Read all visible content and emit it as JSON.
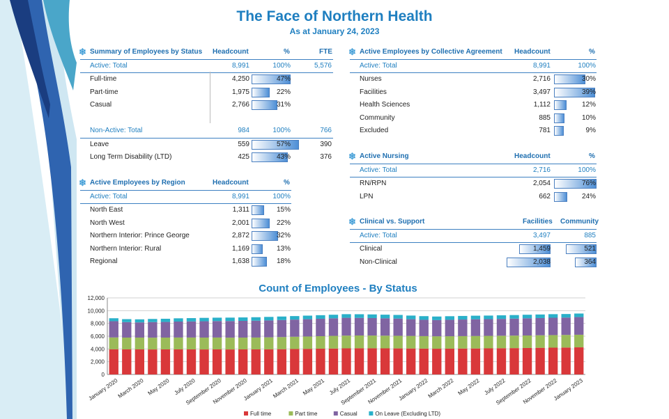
{
  "header": {
    "title": "The Face of Northern Health",
    "subtitle": "As at January 24, 2023"
  },
  "status": {
    "title": "Summary of Employees by Status",
    "cols": [
      "Headcount",
      "%",
      "FTE"
    ],
    "rows": [
      {
        "label": "Active: Total",
        "head": "8,991",
        "pct": "100%",
        "fte": "5,576",
        "type": "total"
      },
      {
        "label": "Full-time",
        "head": "4,250",
        "pct": "47%",
        "p": 47
      },
      {
        "label": "Part-time",
        "head": "1,975",
        "pct": "22%",
        "p": 22
      },
      {
        "label": "Casual",
        "head": "2,766",
        "pct": "31%",
        "p": 31
      },
      {
        "label": "",
        "type": "blank"
      },
      {
        "label": "Non-Active: Total",
        "head": "984",
        "pct": "100%",
        "fte": "766",
        "type": "total"
      },
      {
        "label": "Leave",
        "head": "559",
        "pct": "57%",
        "fte": "390",
        "p": 57
      },
      {
        "label": "Long Term Disability (LTD)",
        "head": "425",
        "pct": "43%",
        "fte": "376",
        "p": 43
      }
    ]
  },
  "region": {
    "title": "Active Employees by Region",
    "cols": [
      "Headcount",
      "%"
    ],
    "rows": [
      {
        "label": "Active: Total",
        "head": "8,991",
        "pct": "100%",
        "type": "total"
      },
      {
        "label": "North East",
        "head": "1,311",
        "pct": "15%",
        "p": 15
      },
      {
        "label": "North West",
        "head": "2,001",
        "pct": "22%",
        "p": 22
      },
      {
        "label": "Northern Interior: Prince George",
        "head": "2,872",
        "pct": "32%",
        "p": 32
      },
      {
        "label": "Northern Interior: Rural",
        "head": "1,169",
        "pct": "13%",
        "p": 13
      },
      {
        "label": "Regional",
        "head": "1,638",
        "pct": "18%",
        "p": 18
      }
    ]
  },
  "collective": {
    "title": "Active Employees by Collective Agreement",
    "cols": [
      "Headcount",
      "%"
    ],
    "rows": [
      {
        "label": "Active: Total",
        "head": "8,991",
        "pct": "100%",
        "type": "total"
      },
      {
        "label": "Nurses",
        "head": "2,716",
        "pct": "30%",
        "p": 30
      },
      {
        "label": "Facilities",
        "head": "3,497",
        "pct": "39%",
        "p": 39
      },
      {
        "label": "Health Sciences",
        "head": "1,112",
        "pct": "12%",
        "p": 12
      },
      {
        "label": "Community",
        "head": "885",
        "pct": "10%",
        "p": 10
      },
      {
        "label": "Excluded",
        "head": "781",
        "pct": "9%",
        "p": 9
      }
    ]
  },
  "nursing": {
    "title": "Active Nursing",
    "cols": [
      "Headcount",
      "%"
    ],
    "rows": [
      {
        "label": "Active: Total",
        "head": "2,716",
        "pct": "100%",
        "type": "total"
      },
      {
        "label": "RN/RPN",
        "head": "2,054",
        "pct": "76%",
        "p": 76
      },
      {
        "label": "LPN",
        "head": "662",
        "pct": "24%",
        "p": 24
      }
    ]
  },
  "clinical": {
    "title": "Clinical vs. Support",
    "cols": [
      "Facilities",
      "Community"
    ],
    "rows": [
      {
        "label": "Active: Total",
        "fac": "3,497",
        "com": "885",
        "type": "total"
      },
      {
        "label": "Clinical",
        "fac": "1,459",
        "com": "521",
        "pf": 0.417,
        "pc": 0.589
      },
      {
        "label": "Non-Clinical",
        "fac": "2,038",
        "com": "364",
        "pf": 0.583,
        "pc": 0.411
      }
    ]
  },
  "chart_data": {
    "type": "bar",
    "stacked": true,
    "title": "Count of Employees - By Status",
    "ylim": [
      0,
      12000
    ],
    "yticks": [
      "0",
      "2,000",
      "4,000",
      "6,000",
      "8,000",
      "10,000",
      "12,000"
    ],
    "categories": [
      "Jan 2020",
      "Feb 2020",
      "Mar 2020",
      "Apr 2020",
      "May 2020",
      "Jun 2020",
      "Jul 2020",
      "Aug 2020",
      "Sep 2020",
      "Oct 2020",
      "Nov 2020",
      "Dec 2020",
      "Jan 2021",
      "Feb 2021",
      "Mar 2021",
      "Apr 2021",
      "May 2021",
      "Jun 2021",
      "Jul 2021",
      "Aug 2021",
      "Sep 2021",
      "Oct 2021",
      "Nov 2021",
      "Dec 2021",
      "Jan 2022",
      "Feb 2022",
      "Mar 2022",
      "Apr 2022",
      "May 2022",
      "Jun 2022",
      "Jul 2022",
      "Aug 2022",
      "Sep 2022",
      "Oct 2022",
      "Nov 2022",
      "Dec 2022",
      "Jan 2023"
    ],
    "xlabels": [
      "January 2020",
      "March 2020",
      "May 2020",
      "July 2020",
      "September 2020",
      "November 2020",
      "January 2021",
      "March 2021",
      "May 2021",
      "July 2021",
      "September 2021",
      "November 2021",
      "January 2022",
      "March 2022",
      "May 2022",
      "July 2022",
      "September 2022",
      "November 2022",
      "January 2023"
    ],
    "legend": "bottom",
    "series": [
      {
        "name": "Full time",
        "color": "#d9383a",
        "values": [
          3950,
          3930,
          3930,
          3920,
          3930,
          3930,
          3930,
          3920,
          3930,
          3920,
          3930,
          3930,
          3940,
          3960,
          3990,
          4010,
          4040,
          4060,
          4090,
          4100,
          4100,
          4090,
          4080,
          4070,
          4050,
          4030,
          4040,
          4060,
          4070,
          4090,
          4110,
          4130,
          4150,
          4180,
          4200,
          4220,
          4250
        ]
      },
      {
        "name": "Part time",
        "color": "#9bbb59",
        "values": [
          1850,
          1850,
          1850,
          1850,
          1850,
          1860,
          1860,
          1860,
          1860,
          1850,
          1850,
          1860,
          1880,
          1900,
          1920,
          1940,
          1960,
          1990,
          2000,
          2010,
          2000,
          1990,
          1980,
          1970,
          1960,
          1950,
          1950,
          1950,
          1960,
          1960,
          1960,
          1960,
          1960,
          1960,
          1970,
          1975,
          1975
        ]
      },
      {
        "name": "Casual",
        "color": "#8064a2",
        "values": [
          2550,
          2420,
          2380,
          2440,
          2450,
          2500,
          2520,
          2560,
          2580,
          2600,
          2620,
          2640,
          2650,
          2670,
          2690,
          2710,
          2730,
          2750,
          2790,
          2760,
          2740,
          2720,
          2700,
          2620,
          2560,
          2540,
          2580,
          2600,
          2620,
          2620,
          2640,
          2660,
          2690,
          2700,
          2720,
          2720,
          2766
        ]
      },
      {
        "name": "On Leave (Excluding LTD)",
        "color": "#2ab0c9",
        "values": [
          460,
          470,
          480,
          490,
          500,
          510,
          520,
          530,
          530,
          540,
          540,
          540,
          550,
          550,
          550,
          560,
          560,
          560,
          570,
          570,
          570,
          570,
          570,
          570,
          570,
          560,
          560,
          560,
          560,
          560,
          560,
          560,
          560,
          560,
          560,
          560,
          559
        ]
      }
    ]
  }
}
